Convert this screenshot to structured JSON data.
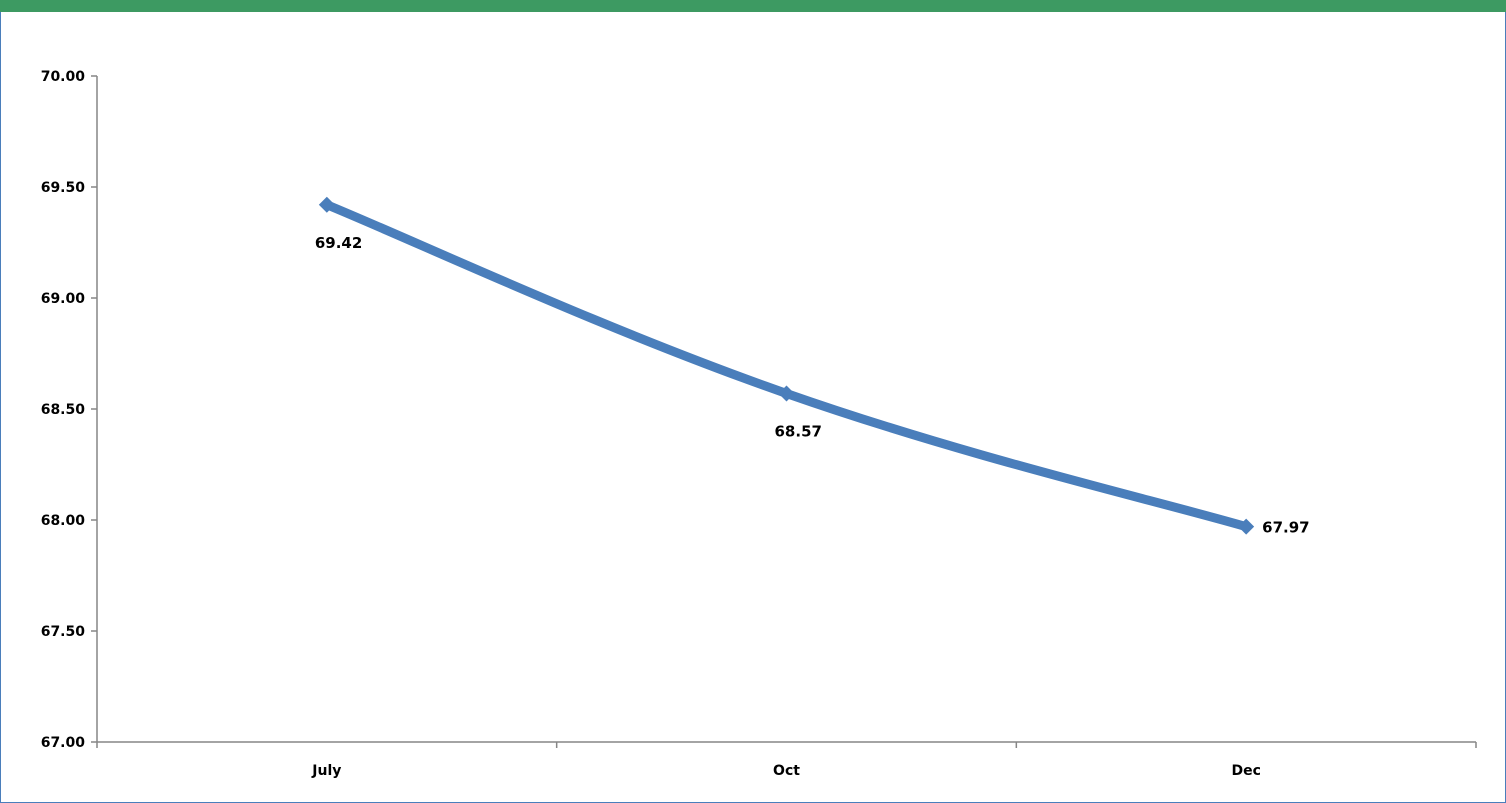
{
  "colors": {
    "header_bar": "#3d9a62",
    "frame_border": "#4a7ebb",
    "series_line": "#4a7ebb",
    "axis": "#868686"
  },
  "chart_data": {
    "type": "line",
    "categories": [
      "July",
      "Oct",
      "Dec"
    ],
    "series": [
      {
        "values": [
          69.42,
          68.57,
          67.97
        ],
        "data_labels": [
          "69.42",
          "68.57",
          "67.97"
        ]
      }
    ],
    "y_ticks": [
      "67.00",
      "67.50",
      "68.00",
      "68.50",
      "69.00",
      "69.50",
      "70.00"
    ],
    "ylim": [
      67.0,
      70.0
    ],
    "grid": false,
    "legend": "none",
    "marker": "diamond"
  }
}
